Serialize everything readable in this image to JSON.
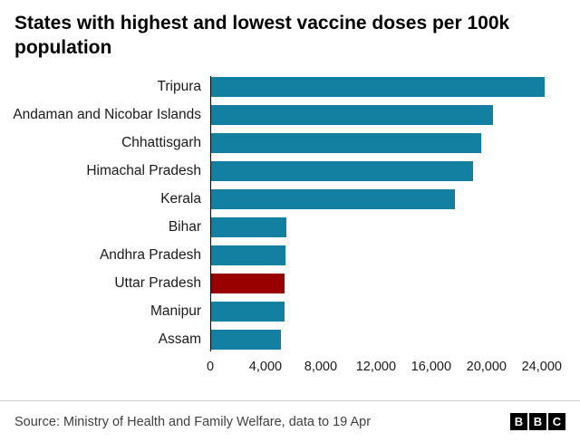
{
  "title": "States with highest and lowest vaccine doses per 100k population",
  "chart_data": {
    "type": "bar",
    "orientation": "horizontal",
    "title": "States with highest and lowest vaccine doses per 100k population",
    "categories": [
      "Tripura",
      "Andaman and Nicobar Islands",
      "Chhattisgarh",
      "Himachal Pradesh",
      "Kerala",
      "Bihar",
      "Andhra Pradesh",
      "Uttar Pradesh",
      "Manipur",
      "Assam"
    ],
    "values": [
      24200,
      20500,
      19600,
      19000,
      17700,
      5500,
      5450,
      5400,
      5350,
      5150
    ],
    "highlight_category": "Uttar Pradesh",
    "colors": {
      "bar": "#1380A1",
      "highlight": "#990000"
    },
    "xlim": [
      0,
      24800
    ],
    "xticks": [
      0,
      4000,
      8000,
      12000,
      16000,
      20000,
      24000
    ],
    "xtick_labels": [
      "0",
      "4,000",
      "8,000",
      "12,000",
      "16,000",
      "20,000",
      "24,000"
    ],
    "xlabel": "",
    "ylabel": "",
    "grid": false,
    "legend": false
  },
  "footer": {
    "source": "Source: Ministry of Health and Family Welfare, data to 19 Apr",
    "logo_letters": [
      "B",
      "B",
      "C"
    ]
  }
}
